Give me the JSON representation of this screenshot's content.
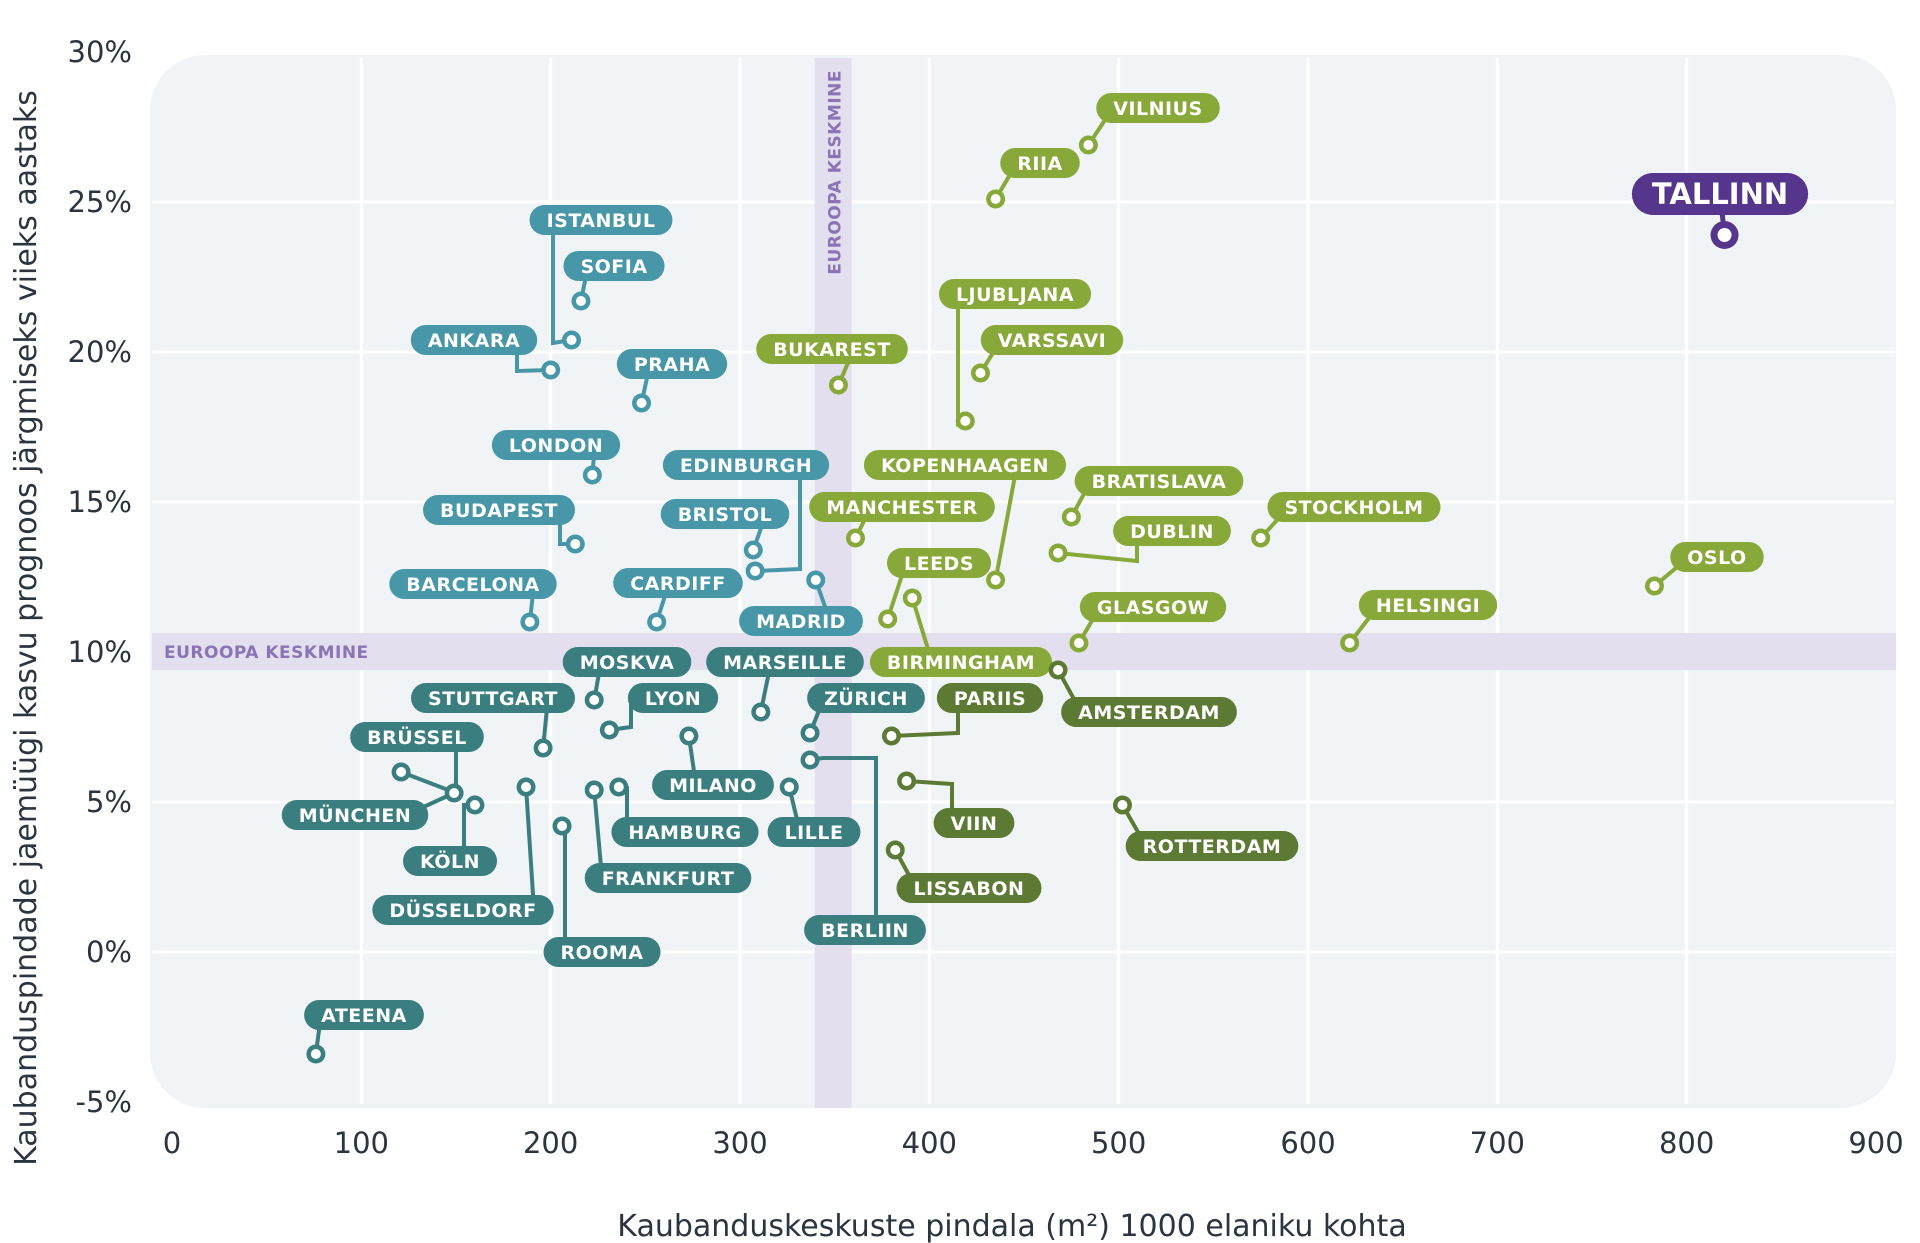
{
  "chart_data": {
    "type": "scatter",
    "title": "",
    "xlabel": "Kaubanduskeskuste pindala (m²) 1000 elaniku kohta",
    "ylabel": "Kaubanduspindade jaemüügi kasvu prognoos järgmiseks viieks aastaks",
    "xlim": [
      0,
      900
    ],
    "ylim": [
      -5,
      30
    ],
    "x_ticks": [
      "0",
      "100",
      "200",
      "300",
      "400",
      "500",
      "600",
      "700",
      "800",
      "900"
    ],
    "y_ticks": [
      "-5%",
      "0%",
      "5%",
      "10%",
      "15%",
      "20%",
      "25%",
      "30%"
    ],
    "grid": true,
    "averages": {
      "x": 350,
      "y": 10,
      "x_label": "EUROOPA KESKMINE",
      "y_label": "EUROOPA KESKMINE"
    },
    "colors": {
      "highlight": "#55368c",
      "green": "#89a83a",
      "dark_green": "#5d7a34",
      "blue": "#4797a8",
      "teal": "#3b7e7f",
      "average_band": "#e4dfee",
      "average_text": "#8a74b5",
      "plot_bg": "#f0f4f6"
    },
    "points": [
      {
        "name": "TALLINN",
        "x": 820,
        "y": 23.9,
        "group": "highlight"
      },
      {
        "name": "VILNIUS",
        "x": 484,
        "y": 26.9,
        "group": "green"
      },
      {
        "name": "RIIA",
        "x": 435,
        "y": 25.1,
        "group": "green"
      },
      {
        "name": "LJUBLJANA",
        "x": 419,
        "y": 17.7,
        "group": "green"
      },
      {
        "name": "VARSSAVI",
        "x": 427,
        "y": 19.3,
        "group": "green"
      },
      {
        "name": "BUKAREST",
        "x": 352,
        "y": 18.9,
        "group": "green"
      },
      {
        "name": "KOPENHAAGEN",
        "x": 435,
        "y": 12.4,
        "group": "green"
      },
      {
        "name": "BRATISLAVA",
        "x": 475,
        "y": 14.5,
        "group": "green"
      },
      {
        "name": "DUBLIN",
        "x": 468,
        "y": 13.3,
        "group": "green"
      },
      {
        "name": "STOCKHOLM",
        "x": 575,
        "y": 13.8,
        "group": "green"
      },
      {
        "name": "OSLO",
        "x": 783,
        "y": 12.2,
        "group": "green"
      },
      {
        "name": "HELSINGI",
        "x": 622,
        "y": 10.3,
        "group": "green"
      },
      {
        "name": "MANCHESTER",
        "x": 361,
        "y": 13.8,
        "group": "green"
      },
      {
        "name": "LEEDS",
        "x": 378,
        "y": 11.1,
        "group": "green"
      },
      {
        "name": "BIRMINGHAM",
        "x": 391,
        "y": 11.8,
        "group": "green"
      },
      {
        "name": "GLASGOW",
        "x": 479,
        "y": 10.3,
        "group": "green"
      },
      {
        "name": "AMSTERDAM",
        "x": 468,
        "y": 9.4,
        "group": "dark_green"
      },
      {
        "name": "PARIIS",
        "x": 380,
        "y": 7.2,
        "group": "dark_green"
      },
      {
        "name": "VIIN",
        "x": 388,
        "y": 5.7,
        "group": "dark_green"
      },
      {
        "name": "LISSABON",
        "x": 382,
        "y": 3.4,
        "group": "dark_green"
      },
      {
        "name": "ROTTERDAM",
        "x": 502,
        "y": 4.9,
        "group": "dark_green"
      },
      {
        "name": "ISTANBUL",
        "x": 211,
        "y": 20.4,
        "group": "blue"
      },
      {
        "name": "SOFIA",
        "x": 216,
        "y": 21.7,
        "group": "blue"
      },
      {
        "name": "ANKARA",
        "x": 200,
        "y": 19.4,
        "group": "blue"
      },
      {
        "name": "PRAHA",
        "x": 248,
        "y": 18.3,
        "group": "blue"
      },
      {
        "name": "LONDON",
        "x": 222,
        "y": 15.9,
        "group": "blue"
      },
      {
        "name": "BUDAPEST",
        "x": 213,
        "y": 13.6,
        "group": "blue"
      },
      {
        "name": "BARCELONA",
        "x": 189,
        "y": 11.0,
        "group": "blue"
      },
      {
        "name": "EDINBURGH",
        "x": 308,
        "y": 12.7,
        "group": "blue"
      },
      {
        "name": "BRISTOL",
        "x": 307,
        "y": 13.4,
        "group": "blue"
      },
      {
        "name": "CARDIFF",
        "x": 256,
        "y": 11.0,
        "group": "blue"
      },
      {
        "name": "MADRID",
        "x": 340,
        "y": 12.4,
        "group": "blue"
      },
      {
        "name": "MOSKVA",
        "x": 223,
        "y": 8.4,
        "group": "teal"
      },
      {
        "name": "MARSEILLE",
        "x": 311,
        "y": 8.0,
        "group": "teal"
      },
      {
        "name": "STUTTGART",
        "x": 196,
        "y": 6.8,
        "group": "teal"
      },
      {
        "name": "LYON",
        "x": 231,
        "y": 7.4,
        "group": "teal"
      },
      {
        "name": "ZÜRICH",
        "x": 337,
        "y": 7.3,
        "group": "teal"
      },
      {
        "name": "BRÜSSEL",
        "x": 121,
        "y": 6.0,
        "group": "teal"
      },
      {
        "name": "MILANO",
        "x": 273,
        "y": 7.2,
        "group": "teal"
      },
      {
        "name": "MÜNCHEN",
        "x": 149,
        "y": 5.3,
        "group": "teal"
      },
      {
        "name": "KÖLN",
        "x": 160,
        "y": 4.9,
        "group": "teal"
      },
      {
        "name": "HAMBURG",
        "x": 236,
        "y": 5.5,
        "group": "teal"
      },
      {
        "name": "LILLE",
        "x": 326,
        "y": 5.5,
        "group": "teal"
      },
      {
        "name": "FRANKFURT",
        "x": 223,
        "y": 5.4,
        "group": "teal"
      },
      {
        "name": "DÜSSELDORF",
        "x": 187,
        "y": 5.5,
        "group": "teal"
      },
      {
        "name": "ROOMA",
        "x": 206,
        "y": 4.2,
        "group": "teal"
      },
      {
        "name": "BERLIIN",
        "x": 337,
        "y": 6.4,
        "group": "teal"
      },
      {
        "name": "ATEENA",
        "x": 76,
        "y": -3.4,
        "group": "teal"
      }
    ]
  }
}
